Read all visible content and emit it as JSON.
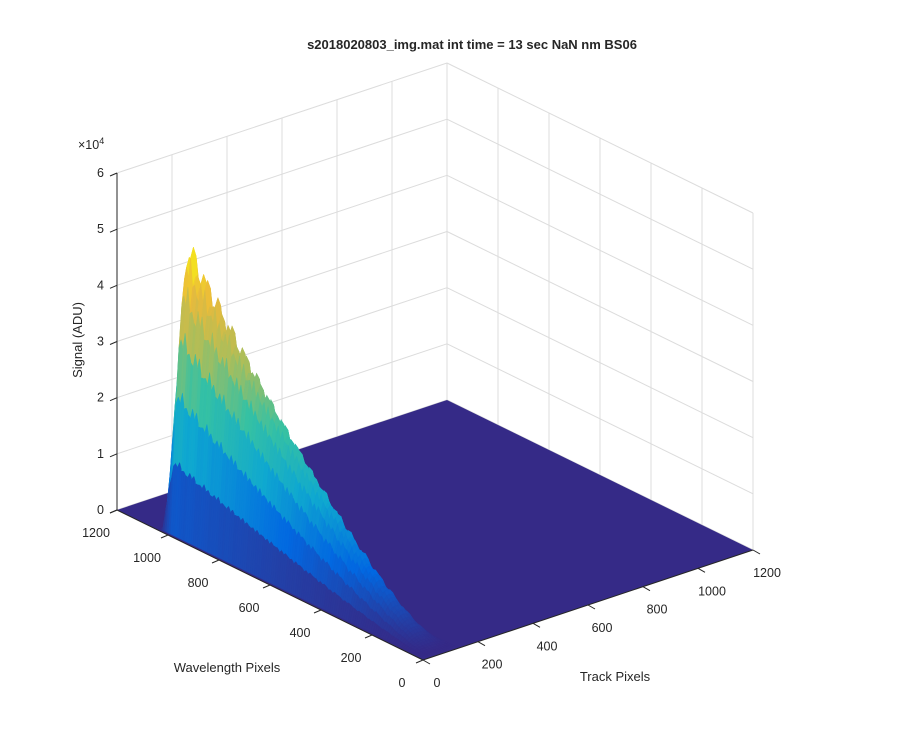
{
  "chart_data": {
    "type": "surface",
    "title": "s2018020803_img.mat int time = 13 sec  NaN nm BS06",
    "xlabel": "Track Pixels",
    "ylabel": "Wavelength Pixels",
    "zlabel": "Signal (ADU)",
    "z_exponent": "×10",
    "z_exponent_power": "4",
    "xlim": [
      0,
      1200
    ],
    "ylim": [
      0,
      1200
    ],
    "zlim": [
      0,
      60000
    ],
    "x_ticks": [
      "0",
      "200",
      "400",
      "600",
      "800",
      "1000",
      "1200"
    ],
    "y_ticks": [
      "0",
      "200",
      "400",
      "600",
      "800",
      "1000",
      "1200"
    ],
    "z_ticks": [
      "0",
      "1",
      "2",
      "3",
      "4",
      "5",
      "6"
    ],
    "grid": true,
    "colormap": "parula",
    "colors": [
      "#352a87",
      "#0268e1",
      "#0fa8d0",
      "#35c1a4",
      "#a8be5c",
      "#ebba3b",
      "#f9fb0e"
    ],
    "surface_profile": {
      "track_band": [
        10,
        130
      ],
      "wavelength_range": [
        30,
        1040
      ],
      "peak_signal": 52000,
      "peak_wavelength": 1000,
      "background_signal": 0
    }
  }
}
